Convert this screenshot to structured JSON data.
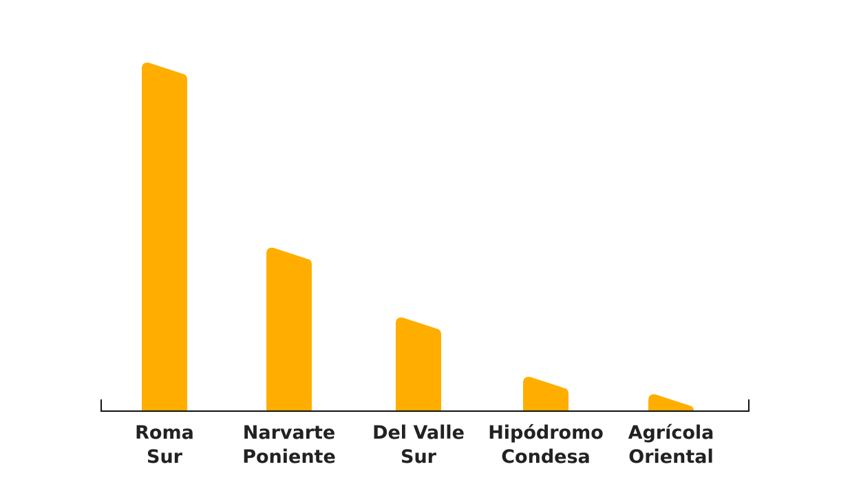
{
  "chart_data": {
    "type": "bar",
    "categories": [
      [
        "Roma",
        "Sur"
      ],
      [
        "Narvarte",
        "Poniente"
      ],
      [
        "Del Valle",
        "Sur"
      ],
      [
        "Hipódromo",
        "Condesa"
      ],
      [
        "Agrícola",
        "Oriental"
      ]
    ],
    "values": [
      100,
      47,
      27,
      10,
      5
    ],
    "title": "",
    "xlabel": "",
    "ylabel": "",
    "ylim": [
      0,
      100
    ],
    "grid": false,
    "legend": "none",
    "bar_color": "#FFAE00",
    "axis_color": "#111111",
    "label_color": "#222222"
  }
}
